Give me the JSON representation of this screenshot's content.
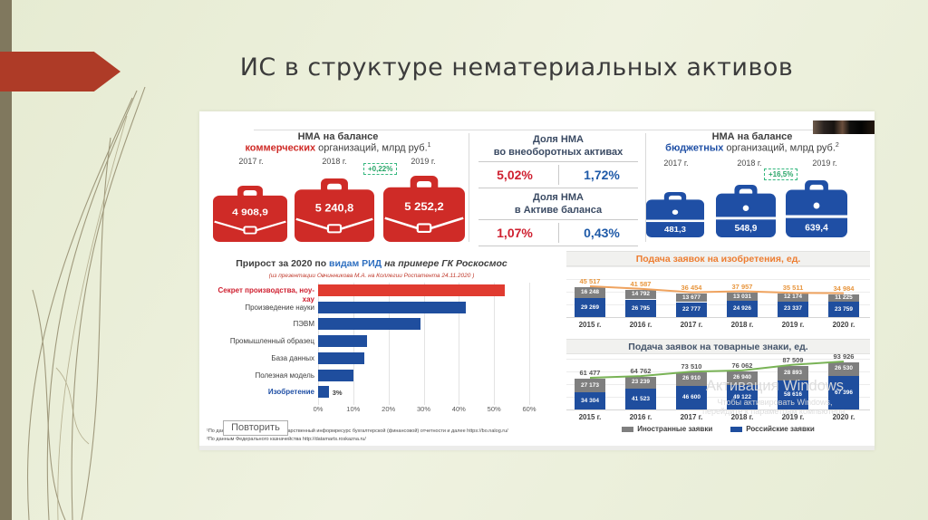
{
  "slide": {
    "title": "ИС в структуре нематериальных активов"
  },
  "panel": {
    "commercial": {
      "title_line1": "НМА на балансе",
      "title_highlight": "коммерческих",
      "title_rest": " организаций, млрд руб.",
      "title_sup": "1",
      "years": [
        "2017 г.",
        "2018 г.",
        "2019 г."
      ],
      "values": [
        "4 908,9",
        "5 240,8",
        "5 252,2"
      ],
      "badge": "+0,22%",
      "color": "#cf2b27"
    },
    "shares": {
      "block1_title_line1": "Доля НМА",
      "block1_title_line2": "во внеоборотных активах",
      "block1_left": "5,02%",
      "block1_right": "1,72%",
      "block2_title_line1": "Доля НМА",
      "block2_title_line2": "в Активе баланса",
      "block2_left": "1,07%",
      "block2_right": "0,43%"
    },
    "budget": {
      "title_line1": "НМА на балансе",
      "title_highlight": "бюджетных",
      "title_rest": " организаций, млрд руб.",
      "title_sup": "2",
      "years": [
        "2017 г.",
        "2018 г.",
        "2019 г."
      ],
      "values": [
        "481,3",
        "548,9",
        "639,4"
      ],
      "badge": "+16,5%",
      "color": "#1f4fa5"
    },
    "replay_button": "Повторить",
    "footnotes": {
      "f1_prefix": "¹По дан",
      "f1_rest": "государственный информресурс бухгалтерской (финансовой) отчетности и далее https://bo.nalog.ru/",
      "f2": "²По данным Федерального казначейства http://datamarts.roskazna.ru/"
    },
    "watermark": {
      "line1": "Активация Windows",
      "line2": "Чтобы активировать Windows,",
      "line3": "перейдите к параметрам компьютера."
    }
  },
  "chart_data": [
    {
      "id": "rid_growth",
      "type": "bar",
      "orientation": "horizontal",
      "title_prefix": "Прирост за 2020 по ",
      "title_link": "видам РИД",
      "title_suffix": " на примере ГК Роскосмос",
      "subtitle": "(из презентации Овчинникова М.А. на Коллегии Роспатента 24.11.2020 )",
      "categories": [
        "Секрет производства, ноу-хау",
        "Произведение науки",
        "ПЭВМ",
        "Промышленный образец",
        "База данных",
        "Полезная модель",
        "Изобретение"
      ],
      "values": [
        53,
        42,
        29,
        14,
        13,
        10,
        3
      ],
      "value_labels": [
        "53%",
        "42%",
        "29%",
        "14%",
        "13%",
        "10%",
        "3%"
      ],
      "bar_colors": [
        "#e03b30",
        "#1f4e9e",
        "#1f4e9e",
        "#1f4e9e",
        "#1f4e9e",
        "#1f4e9e",
        "#1f4e9e"
      ],
      "label_colors": [
        "#cf2030",
        "#3f3f3f",
        "#3f3f3f",
        "#3f3f3f",
        "#3f3f3f",
        "#3f3f3f",
        "#1f4fa5"
      ],
      "label_bold": [
        true,
        false,
        false,
        false,
        false,
        false,
        true
      ],
      "x_ticks": [
        "0%",
        "10%",
        "20%",
        "30%",
        "40%",
        "50%",
        "60%"
      ],
      "xlim": [
        0,
        60
      ],
      "grid": true
    },
    {
      "id": "inventions",
      "type": "stacked-bar",
      "title": "Подача заявок на изобретения, ед.",
      "title_color": "#ed7d31",
      "categories": [
        "2015 г.",
        "2016 г.",
        "2017 г.",
        "2018 г.",
        "2019 г.",
        "2020 г."
      ],
      "series": [
        {
          "name": "Иностранные заявки",
          "color": "#7f7f7f",
          "values": [
            16248,
            14792,
            13677,
            13031,
            12174,
            11225
          ],
          "labels": [
            "16 248",
            "14 792",
            "13 677",
            "13 031",
            "12 174",
            "11 225"
          ]
        },
        {
          "name": "Российские заявки",
          "color": "#1f4e9e",
          "values": [
            29269,
            26795,
            22777,
            24926,
            23337,
            23759
          ],
          "labels": [
            "29 269",
            "26 795",
            "22 777",
            "24 926",
            "23 337",
            "23 759"
          ]
        }
      ],
      "totals": [
        45517,
        41587,
        36454,
        37957,
        35511,
        34984
      ],
      "totals_labels": [
        "45 517",
        "41 587",
        "36 454",
        "37 957",
        "35 511",
        "34 984"
      ],
      "totals_color": "#e8963e",
      "line_color": "#efa35f"
    },
    {
      "id": "trademarks",
      "type": "stacked-bar",
      "title": "Подача заявок на товарные знаки, ед.",
      "title_color": "#44546a",
      "categories": [
        "2015 г.",
        "2016 г.",
        "2017 г.",
        "2018 г.",
        "2019 г.",
        "2020 г."
      ],
      "series": [
        {
          "name": "Иностранные заявки",
          "color": "#7f7f7f",
          "values": [
            27173,
            23239,
            26910,
            26940,
            28893,
            26530
          ],
          "labels": [
            "27 173",
            "23 239",
            "26 910",
            "26 940",
            "28 893",
            "26 530"
          ]
        },
        {
          "name": "Российские заявки",
          "color": "#1f4e9e",
          "values": [
            34304,
            41523,
            46600,
            49122,
            58616,
            67396
          ],
          "labels": [
            "34 304",
            "41 523",
            "46 600",
            "49 122",
            "58 616",
            "67 396"
          ]
        }
      ],
      "totals": [
        61477,
        64762,
        73510,
        76062,
        87509,
        93926
      ],
      "totals_labels": [
        "61 477",
        "64 762",
        "73 510",
        "76 062",
        "87 509",
        "93 926"
      ],
      "totals_color": "#565656",
      "line_color": "#79b356"
    }
  ]
}
